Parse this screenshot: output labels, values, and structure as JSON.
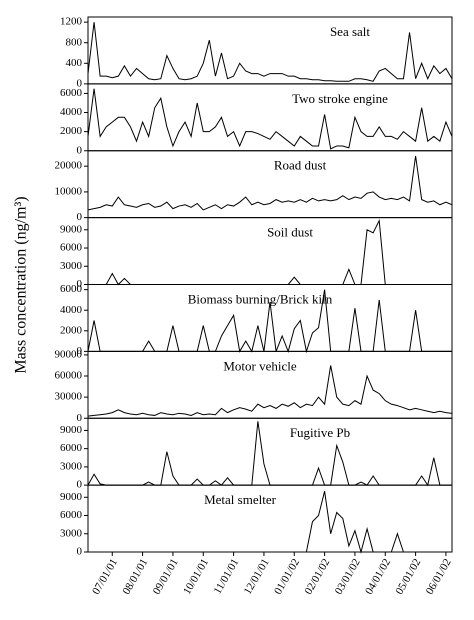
{
  "chart_data": [
    {
      "type": "line",
      "title": "Sea salt",
      "ylabel": "Mass concentration (ng/m³)",
      "color": "#000000",
      "ylim": [
        0,
        1300
      ],
      "yticks": [
        0,
        400,
        800,
        1200
      ],
      "values": [
        200,
        1200,
        150,
        150,
        120,
        150,
        350,
        150,
        300,
        200,
        100,
        80,
        100,
        550,
        300,
        100,
        80,
        100,
        150,
        400,
        850,
        150,
        600,
        100,
        150,
        400,
        250,
        200,
        200,
        150,
        200,
        200,
        200,
        150,
        150,
        100,
        100,
        80,
        80,
        60,
        60,
        50,
        50,
        50,
        100,
        100,
        80,
        50,
        250,
        300,
        200,
        100,
        100,
        1000,
        100,
        400,
        100,
        350,
        200,
        300,
        100
      ]
    },
    {
      "type": "line",
      "title": "Two stroke engine",
      "color": "#000000",
      "ylim": [
        0,
        7000
      ],
      "yticks": [
        0,
        2000,
        4000,
        6000
      ],
      "values": [
        1500,
        6500,
        1500,
        2500,
        3000,
        3500,
        3500,
        2500,
        1000,
        3000,
        1500,
        4500,
        5500,
        2500,
        500,
        2000,
        3000,
        1500,
        5000,
        2000,
        2000,
        2500,
        3500,
        1500,
        2000,
        500,
        2000,
        2000,
        1800,
        1500,
        1200,
        2000,
        1500,
        1000,
        500,
        1500,
        1000,
        500,
        500,
        3800,
        200,
        500,
        500,
        300,
        3500,
        2000,
        1500,
        1500,
        2500,
        1500,
        1500,
        1200,
        2000,
        1500,
        1000,
        4500,
        1000,
        1500,
        1000,
        3000,
        1500
      ]
    },
    {
      "type": "line",
      "title": "Road dust",
      "color": "#000000",
      "ylim": [
        0,
        26000
      ],
      "yticks": [
        0,
        10000,
        20000
      ],
      "values": [
        3000,
        3500,
        4000,
        5000,
        4500,
        8000,
        5000,
        4500,
        4000,
        5000,
        5500,
        4000,
        4500,
        6000,
        3500,
        4500,
        5000,
        4000,
        5500,
        3000,
        4000,
        5000,
        3500,
        5000,
        4500,
        6000,
        8000,
        5000,
        6000,
        5000,
        5500,
        7000,
        6000,
        6500,
        6000,
        7000,
        6000,
        7500,
        6500,
        7000,
        6500,
        7000,
        8500,
        7000,
        8000,
        7500,
        9500,
        10000,
        8000,
        7000,
        7500,
        7000,
        8000,
        6500,
        24000,
        7000,
        6000,
        6500,
        5000,
        6000,
        5000
      ]
    },
    {
      "type": "line",
      "title": "Soil dust",
      "color": "#000000",
      "ylim": [
        0,
        11000
      ],
      "yticks": [
        0,
        3000,
        6000,
        9000
      ],
      "values": [
        0,
        0,
        0,
        0,
        1800,
        0,
        1000,
        0,
        0,
        0,
        0,
        0,
        0,
        0,
        0,
        0,
        0,
        0,
        0,
        0,
        0,
        0,
        0,
        0,
        0,
        0,
        0,
        0,
        0,
        0,
        0,
        0,
        0,
        0,
        1200,
        0,
        0,
        0,
        0,
        0,
        0,
        0,
        0,
        2500,
        0,
        0,
        9000,
        8500,
        10500,
        0,
        0,
        0,
        0,
        0,
        0,
        0,
        0,
        0,
        0,
        0,
        0
      ]
    },
    {
      "type": "line",
      "title": "Biomass burning/Brick kiln",
      "color": "#000000",
      "ylim": [
        0,
        6500
      ],
      "yticks": [
        0,
        2000,
        4000,
        6000
      ],
      "values": [
        0,
        3000,
        0,
        0,
        0,
        0,
        0,
        0,
        0,
        0,
        1000,
        0,
        0,
        0,
        2500,
        0,
        0,
        0,
        0,
        2500,
        0,
        0,
        1500,
        2500,
        3500,
        0,
        1000,
        0,
        2500,
        0,
        4800,
        0,
        1500,
        0,
        2200,
        3000,
        0,
        1800,
        2300,
        6000,
        0,
        0,
        0,
        0,
        4200,
        0,
        0,
        0,
        5000,
        0,
        0,
        0,
        0,
        0,
        4000,
        0,
        0,
        0,
        0,
        0,
        0
      ]
    },
    {
      "type": "line",
      "title": "Motor vehicle",
      "color": "#000000",
      "ylim": [
        0,
        95000
      ],
      "yticks": [
        0,
        30000,
        60000,
        90000
      ],
      "values": [
        3000,
        4000,
        5000,
        6000,
        8000,
        12000,
        8000,
        6000,
        5000,
        7000,
        5000,
        4000,
        8000,
        6000,
        5000,
        7000,
        6000,
        4000,
        8000,
        5000,
        6000,
        5000,
        14000,
        8000,
        12000,
        15000,
        13000,
        10000,
        20000,
        15000,
        18000,
        14000,
        20000,
        17000,
        22000,
        15000,
        20000,
        18000,
        30000,
        20000,
        75000,
        30000,
        20000,
        18000,
        25000,
        20000,
        60000,
        40000,
        35000,
        25000,
        20000,
        18000,
        15000,
        12000,
        14000,
        12000,
        10000,
        8000,
        10000,
        8000,
        7000
      ]
    },
    {
      "type": "line",
      "title": "Fugitive Pb",
      "color": "#000000",
      "ylim": [
        0,
        11000
      ],
      "yticks": [
        0,
        3000,
        6000,
        9000
      ],
      "values": [
        0,
        1800,
        200,
        0,
        0,
        0,
        0,
        0,
        0,
        0,
        500,
        0,
        0,
        5500,
        1500,
        0,
        0,
        0,
        1000,
        0,
        0,
        700,
        0,
        1200,
        0,
        0,
        0,
        0,
        10500,
        3500,
        0,
        0,
        0,
        0,
        0,
        0,
        0,
        0,
        2800,
        0,
        0,
        6500,
        3800,
        0,
        0,
        500,
        0,
        1500,
        0,
        0,
        0,
        0,
        0,
        0,
        0,
        1500,
        0,
        4500,
        0,
        0,
        0
      ]
    },
    {
      "type": "line",
      "title": "Metal smelter",
      "color": "#000000",
      "ylim": [
        0,
        11000
      ],
      "yticks": [
        0,
        3000,
        6000,
        9000
      ],
      "categories": [
        null,
        null,
        null,
        null,
        "07/01/01",
        null,
        null,
        null,
        null,
        "08/01/01",
        null,
        null,
        null,
        null,
        "09/01/01",
        null,
        null,
        null,
        null,
        "10/01/01",
        null,
        null,
        null,
        null,
        "11/01/01",
        null,
        null,
        null,
        null,
        "12/01/01",
        null,
        null,
        null,
        null,
        "01/01/02",
        null,
        null,
        null,
        null,
        "02/01/02",
        null,
        null,
        null,
        null,
        "03/01/02",
        null,
        null,
        null,
        null,
        "04/01/02",
        null,
        null,
        null,
        null,
        "05/01/02",
        null,
        null,
        null,
        null,
        "06/01/02",
        null
      ],
      "values": [
        0,
        0,
        0,
        0,
        0,
        0,
        0,
        0,
        0,
        0,
        0,
        0,
        0,
        0,
        0,
        0,
        0,
        0,
        0,
        0,
        0,
        0,
        0,
        0,
        0,
        0,
        0,
        0,
        0,
        0,
        0,
        0,
        0,
        0,
        0,
        0,
        0,
        5000,
        6000,
        10000,
        3000,
        6500,
        5500,
        1000,
        3500,
        0,
        3800,
        0,
        0,
        0,
        0,
        3000,
        0,
        0,
        0,
        0,
        0,
        0,
        0,
        0,
        0
      ]
    }
  ]
}
